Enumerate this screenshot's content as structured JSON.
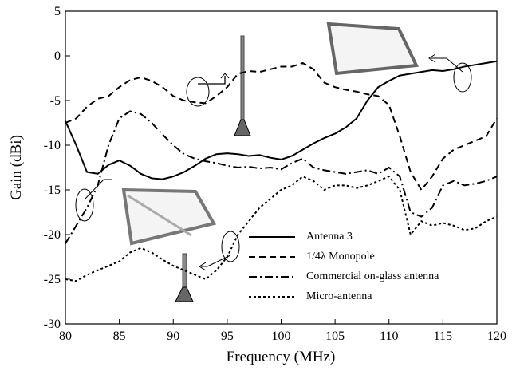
{
  "chart_data": {
    "type": "line",
    "xlabel": "Frequency (MHz)",
    "ylabel": "Gain (dBi)",
    "x": [
      80,
      81,
      82,
      83,
      84,
      85,
      86,
      87,
      88,
      89,
      90,
      91,
      92,
      93,
      94,
      95,
      96,
      97,
      98,
      99,
      100,
      101,
      102,
      103,
      104,
      105,
      106,
      107,
      108,
      109,
      110,
      111,
      112,
      113,
      114,
      115,
      116,
      117,
      118,
      119,
      120
    ],
    "series": [
      {
        "name": "Antenna 3",
        "color": "#000000",
        "dash": "none",
        "values": [
          -7.3,
          -10,
          -13,
          -13.2,
          -12.2,
          -11.7,
          -12.3,
          -13.2,
          -13.7,
          -13.8,
          -13.5,
          -13,
          -12.3,
          -11.5,
          -11,
          -10.9,
          -11,
          -11.2,
          -11.1,
          -11.4,
          -11.6,
          -11.2,
          -10.5,
          -9.8,
          -9.2,
          -8.7,
          -8,
          -7,
          -5,
          -3.5,
          -2.8,
          -2.2,
          -2,
          -1.8,
          -1.6,
          -1.7,
          -1.5,
          -1.2,
          -1,
          -0.8,
          -0.6
        ]
      },
      {
        "name": "1/4λ Monopole",
        "color": "#000000",
        "dash": "8,5",
        "values": [
          -7.5,
          -7,
          -5.7,
          -4.8,
          -4.5,
          -3.5,
          -2.7,
          -2.4,
          -2.8,
          -3.5,
          -4.5,
          -5,
          -5.2,
          -5.3,
          -4.5,
          -3.5,
          -2,
          -1.7,
          -1.8,
          -1.5,
          -1.2,
          -1.2,
          -0.8,
          -1.5,
          -3,
          -3.5,
          -3.8,
          -4,
          -4.3,
          -4.5,
          -5.5,
          -9,
          -13,
          -15,
          -13.5,
          -11.5,
          -10.5,
          -10,
          -9.5,
          -9,
          -7
        ]
      },
      {
        "name": "Commercial on-glass antenna",
        "color": "#000000",
        "dash": "10,4,2,4",
        "values": [
          -21,
          -19,
          -17,
          -14.5,
          -10,
          -7,
          -6.2,
          -6.5,
          -7.5,
          -8.8,
          -10,
          -11,
          -11.5,
          -11.8,
          -12,
          -12.3,
          -12.5,
          -12.4,
          -12.6,
          -12.5,
          -12.7,
          -12,
          -11.5,
          -12.5,
          -12.8,
          -13,
          -13.2,
          -13,
          -12.8,
          -13.2,
          -12.5,
          -13.5,
          -17.5,
          -18,
          -17,
          -14.5,
          -14,
          -14.5,
          -14.3,
          -14,
          -13.5
        ]
      },
      {
        "name": "Micro-antenna",
        "color": "#000000",
        "dash": "3,3",
        "values": [
          -25,
          -25.2,
          -24.5,
          -24,
          -23.5,
          -23,
          -22,
          -21.5,
          -22,
          -22.8,
          -23.5,
          -24,
          -24.5,
          -25,
          -24,
          -22.5,
          -20,
          -18.5,
          -17,
          -16,
          -15,
          -14.5,
          -13.5,
          -14,
          -15,
          -14.5,
          -14.5,
          -14.8,
          -14.5,
          -14,
          -13.5,
          -15,
          -20,
          -18.5,
          -19,
          -18.7,
          -19,
          -19.5,
          -19.3,
          -18.5,
          -18
        ]
      }
    ],
    "xlim": [
      80,
      120
    ],
    "ylim": [
      -30,
      5
    ],
    "xticks": [
      80,
      85,
      90,
      95,
      100,
      105,
      110,
      115,
      120
    ],
    "yticks": [
      -30,
      -25,
      -20,
      -15,
      -10,
      -5,
      0,
      5
    ]
  }
}
